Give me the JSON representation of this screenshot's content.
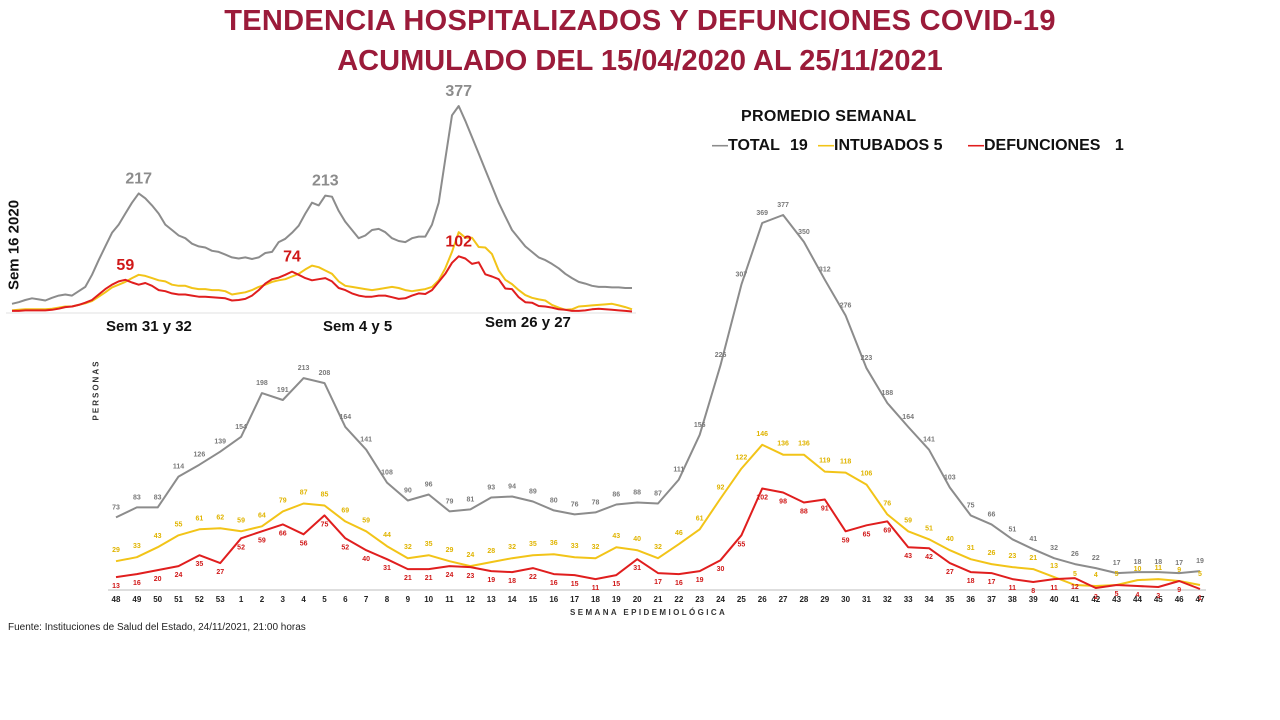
{
  "title_line1": "TENDENCIA HOSPITALIZADOS Y DEFUNCIONES COVID-19",
  "title_line2": "ACUMULADO DEL 15/04/2020 AL 25/11/2021",
  "legend": {
    "title": "PROMEDIO SEMANAL",
    "total_label": "TOTAL",
    "total_value": "19",
    "intubados_label": "INTUBADOS",
    "intubados_value": "5",
    "defunciones_label": "DEFUNCIONES",
    "defunciones_value": "1"
  },
  "colors": {
    "title": "#9b1b3a",
    "total": "#8c8c8c",
    "intubados": "#f2c418",
    "defunciones": "#e01e1e"
  },
  "inset": {
    "side_label": "Sem 16 2020",
    "peak_labels": [
      "Sem 31 y 32",
      "Sem 4 y 5",
      "Sem 26 y 27"
    ],
    "peak_values": {
      "total": [
        "217",
        "213",
        "377"
      ],
      "defunciones": [
        "59",
        "74",
        "102"
      ]
    },
    "chart_data": {
      "type": "line",
      "series": [
        {
          "name": "TOTAL",
          "values": [
            15,
            18,
            22,
            25,
            23,
            21,
            26,
            30,
            32,
            30,
            38,
            46,
            68,
            95,
            120,
            145,
            160,
            180,
            200,
            217,
            208,
            195,
            180,
            160,
            150,
            140,
            135,
            125,
            120,
            118,
            112,
            110,
            105,
            100,
            98,
            100,
            97,
            100,
            108,
            110,
            128,
            134,
            145,
            158,
            180,
            200,
            195,
            213,
            211,
            185,
            165,
            150,
            135,
            140,
            150,
            152,
            146,
            135,
            130,
            128,
            135,
            138,
            138,
            160,
            200,
            280,
            360,
            377,
            350,
            320,
            290,
            260,
            230,
            200,
            175,
            150,
            135,
            120,
            110,
            100,
            95,
            88,
            80,
            70,
            62,
            55,
            52,
            48,
            46,
            46,
            45,
            45,
            44,
            44
          ]
        },
        {
          "name": "INTUBADOS",
          "values": [
            3,
            4,
            5,
            5,
            5,
            5,
            6,
            8,
            10,
            10,
            13,
            16,
            20,
            28,
            36,
            45,
            50,
            55,
            62,
            68,
            66,
            62,
            58,
            56,
            50,
            48,
            48,
            44,
            42,
            42,
            40,
            40,
            38,
            32,
            34,
            36,
            40,
            46,
            50,
            55,
            58,
            60,
            65,
            70,
            78,
            85,
            82,
            76,
            70,
            56,
            48,
            46,
            44,
            42,
            40,
            42,
            44,
            46,
            44,
            40,
            38,
            40,
            42,
            46,
            58,
            80,
            110,
            146,
            136,
            136,
            119,
            118,
            106,
            76,
            59,
            51,
            40,
            31,
            26,
            23,
            21,
            13,
            8,
            4,
            5,
            10,
            11,
            12,
            13,
            14,
            15,
            12,
            9,
            5
          ]
        },
        {
          "name": "DEFUNCIONES",
          "values": [
            2,
            2,
            3,
            3,
            3,
            3,
            4,
            6,
            9,
            10,
            13,
            17,
            22,
            32,
            42,
            50,
            56,
            59,
            54,
            50,
            53,
            48,
            40,
            38,
            34,
            32,
            32,
            30,
            28,
            28,
            27,
            26,
            25,
            21,
            22,
            24,
            30,
            40,
            52,
            60,
            63,
            68,
            74,
            68,
            62,
            58,
            60,
            62,
            56,
            44,
            40,
            34,
            30,
            28,
            28,
            30,
            30,
            27,
            24,
            25,
            30,
            34,
            33,
            40,
            55,
            70,
            90,
            102,
            98,
            88,
            91,
            69,
            65,
            60,
            43,
            42,
            27,
            18,
            17,
            11,
            10,
            8,
            5,
            4,
            2,
            2,
            3,
            5,
            6,
            5,
            4,
            3,
            2,
            1
          ]
        }
      ]
    }
  },
  "main": {
    "y_axis_label": "PERSONAS",
    "x_axis_label": "SEMANA EPIDEMIOLÓGICA",
    "chart_data": {
      "type": "line",
      "categories": [
        "48",
        "49",
        "50",
        "51",
        "52",
        "53",
        "1",
        "2",
        "3",
        "4",
        "5",
        "6",
        "7",
        "8",
        "9",
        "10",
        "11",
        "12",
        "13",
        "14",
        "15",
        "16",
        "17",
        "18",
        "19",
        "20",
        "21",
        "22",
        "23",
        "24",
        "25",
        "26",
        "27",
        "28",
        "29",
        "30",
        "31",
        "32",
        "33",
        "34",
        "35",
        "36",
        "37",
        "38",
        "39",
        "40",
        "41",
        "42",
        "43",
        "44",
        "45",
        "46",
        "47"
      ],
      "series": [
        {
          "name": "TOTAL",
          "values": [
            73,
            83,
            83,
            114,
            126,
            139,
            154,
            198,
            191,
            213,
            208,
            164,
            141,
            108,
            90,
            96,
            79,
            81,
            93,
            94,
            89,
            80,
            76,
            78,
            86,
            88,
            87,
            111,
            156,
            226,
            307,
            369,
            377,
            350,
            312,
            276,
            223,
            188,
            164,
            141,
            103,
            75,
            66,
            51,
            41,
            32,
            26,
            22,
            17,
            18,
            18,
            17,
            19
          ]
        },
        {
          "name": "INTUBADOS",
          "values": [
            29,
            33,
            43,
            55,
            61,
            62,
            59,
            64,
            79,
            87,
            85,
            69,
            59,
            44,
            32,
            35,
            29,
            24,
            28,
            32,
            35,
            36,
            33,
            32,
            43,
            40,
            32,
            46,
            61,
            92,
            122,
            146,
            136,
            136,
            119,
            118,
            106,
            76,
            59,
            51,
            40,
            31,
            26,
            23,
            21,
            13,
            5,
            4,
            5,
            10,
            11,
            9,
            5
          ]
        },
        {
          "name": "DEFUNCIONES",
          "values": [
            13,
            16,
            20,
            24,
            35,
            27,
            52,
            59,
            66,
            56,
            75,
            52,
            40,
            31,
            21,
            21,
            24,
            23,
            19,
            18,
            22,
            16,
            15,
            11,
            15,
            31,
            17,
            16,
            19,
            30,
            55,
            102,
            98,
            88,
            91,
            59,
            65,
            69,
            43,
            42,
            27,
            18,
            17,
            11,
            8,
            11,
            12,
            2,
            5,
            4,
            3,
            9,
            1
          ]
        }
      ]
    }
  },
  "source": "Fuente: Instituciones de Salud del Estado, 24/11/2021, 21:00 horas"
}
